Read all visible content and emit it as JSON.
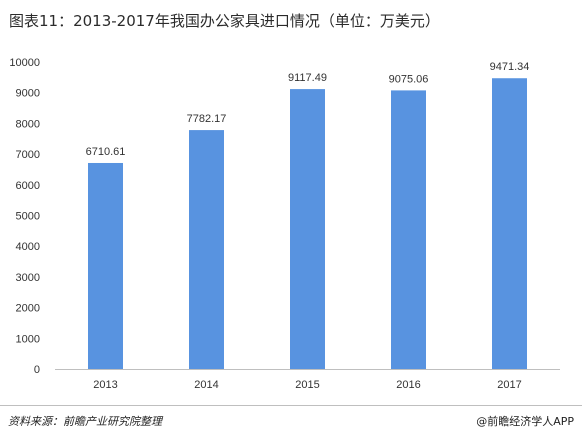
{
  "title": "图表11：2013-2017年我国办公家具进口情况（单位：万美元）",
  "source": "资料来源：前瞻产业研究院整理",
  "brand": "@前瞻经济学人APP",
  "colors": {
    "bar": "#5893e0",
    "axis": "#bfbfbf",
    "text": "#333333"
  },
  "chart_data": {
    "type": "bar",
    "title": "图表11：2013-2017年我国办公家具进口情况（单位：万美元）",
    "categories": [
      "2013",
      "2014",
      "2015",
      "2016",
      "2017"
    ],
    "values": [
      6710.61,
      7782.17,
      9117.49,
      9075.06,
      9471.34
    ],
    "value_labels": [
      "6710.61",
      "7782.17",
      "9117.49",
      "9075.06",
      "9471.34"
    ],
    "yticks": [
      "0",
      "1000",
      "2000",
      "3000",
      "4000",
      "5000",
      "6000",
      "7000",
      "8000",
      "9000",
      "10000"
    ],
    "ylim": [
      0,
      10000
    ],
    "xlabel": "",
    "ylabel": "",
    "grid": false,
    "legend": "none"
  }
}
